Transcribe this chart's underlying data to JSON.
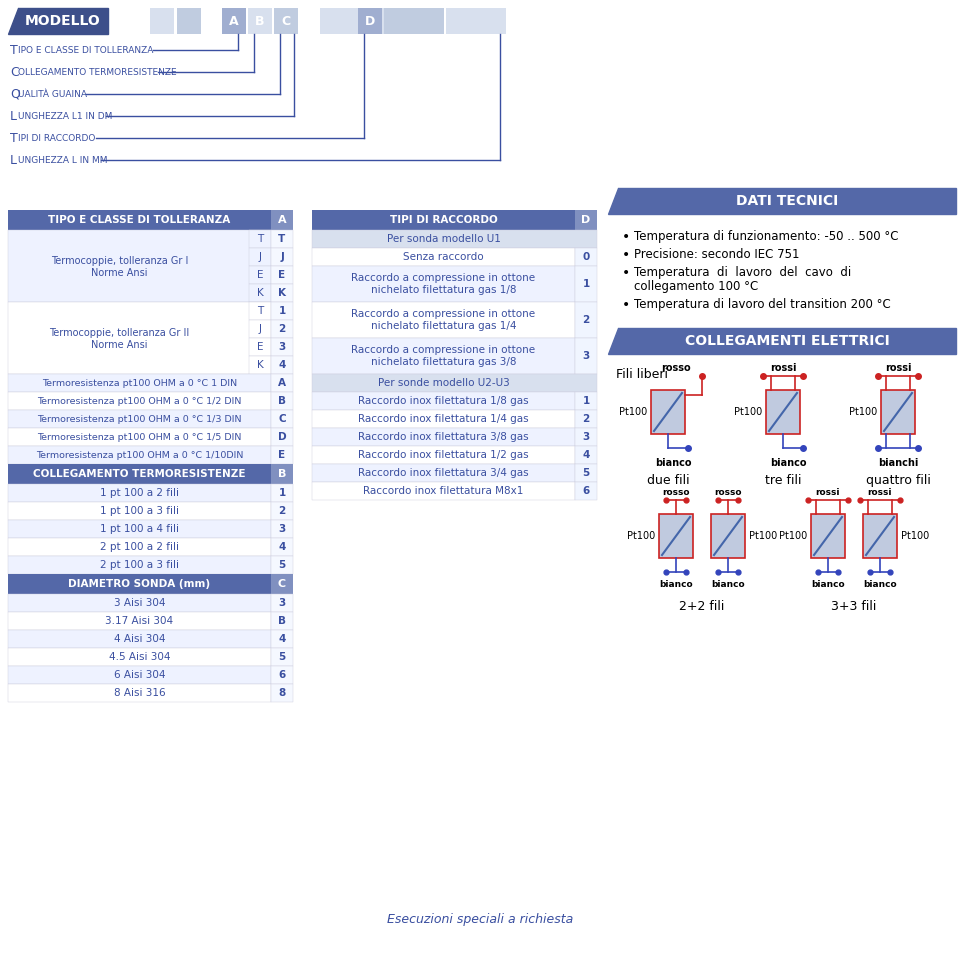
{
  "bg_color": "#ffffff",
  "blue_dark": "#3d4f8a",
  "blue_header": "#5468a8",
  "blue_light": "#8090c0",
  "blue_lighter": "#a0aed0",
  "blue_pale": "#c0cce0",
  "blue_very_pale": "#d8e0ee",
  "text_blue": "#3a4fa0",
  "red_color": "#cc2222",
  "blue_wire": "#3344bb",
  "modello_label": "MODELLO",
  "top_labels": [
    "Tipo e classe di tolleranza",
    "Collegamento termoresistenze",
    "Qualità guaina",
    "Lunghezza L1 in dm",
    "Tipi di raccordo",
    "Lunghezza L in mm"
  ],
  "table1_header": "TIPO E CLASSE DI TOLLERANZA",
  "table1_col_header": "A",
  "table2_header": "COLLEGAMENTO TERMORESISTENZE",
  "table2_col_header": "B",
  "table2_rows": [
    [
      "1 pt 100 a 2 fili",
      "1"
    ],
    [
      "1 pt 100 a 3 fili",
      "2"
    ],
    [
      "1 pt 100 a 4 fili",
      "3"
    ],
    [
      "2 pt 100 a 2 fili",
      "4"
    ],
    [
      "2 pt 100 a 3 fili",
      "5"
    ]
  ],
  "table3_header": "DIAMETRO SONDA (mm)",
  "table3_col_header": "C",
  "table3_rows": [
    [
      "3 Aisi 304",
      "3"
    ],
    [
      "3.17 Aisi 304",
      "B"
    ],
    [
      "4 Aisi 304",
      "4"
    ],
    [
      "4.5 Aisi 304",
      "5"
    ],
    [
      "6 Aisi 304",
      "6"
    ],
    [
      "8 Aisi 316",
      "8"
    ]
  ],
  "table4_header": "TIPI DI RACCORDO",
  "table4_col_header": "D",
  "table4_rows": [
    [
      "Per sonda modello U1",
      "",
      false
    ],
    [
      "Senza raccordo",
      "0",
      true
    ],
    [
      "Raccordo a compressione in ottone\nnichelato filettatura gas 1/8",
      "1",
      true
    ],
    [
      "Raccordo a compressione in ottone\nnichelato filettatura gas 1/4",
      "2",
      true
    ],
    [
      "Raccordo a compressione in ottone\nnichelato filettatura gas 3/8",
      "3",
      true
    ],
    [
      "Per sonde modello U2-U3",
      "",
      false
    ],
    [
      "Raccordo inox filettatura 1/8 gas",
      "1",
      true
    ],
    [
      "Raccordo inox filettatura 1/4 gas",
      "2",
      true
    ],
    [
      "Raccordo inox filettatura 3/8 gas",
      "3",
      true
    ],
    [
      "Raccordo inox filettatura 1/2 gas",
      "4",
      true
    ],
    [
      "Raccordo inox filettatura 3/4 gas",
      "5",
      true
    ],
    [
      "Raccordo inox filettatura M8x1",
      "6",
      true
    ]
  ],
  "dati_tecnici_header": "DATI TECNICI",
  "dati_tecnici_bullets": [
    "Temperatura di funzionamento: -50 .. 500 °C",
    "Precisione: secondo IEC 751",
    "Temperatura  di  lavoro  del  cavo  di\ncollegamento 100 °C",
    "Temperatura di lavoro del transition 200 °C"
  ],
  "collegamenti_header": "COLLEGAMENTI ELETTRICI",
  "fili_liberi": "Fili liberi",
  "footer_text": "Esecuzioni speciali a richiesta"
}
